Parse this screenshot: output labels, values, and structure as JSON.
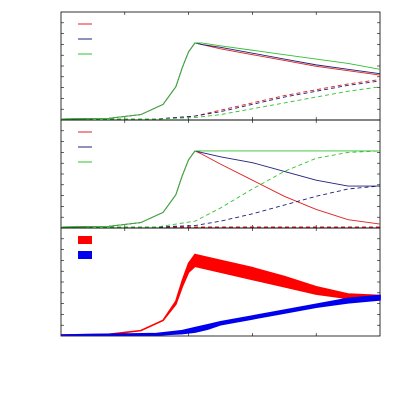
{
  "chart_data": [
    {
      "type": "line",
      "title": "",
      "xlabel": "",
      "ylabel": "",
      "xlim": [
        0,
        1
      ],
      "ylim": [
        0,
        1
      ],
      "grid": false,
      "legend": {
        "position": "top-left",
        "labels": [
          "",
          "",
          ""
        ]
      },
      "series": [
        {
          "color": "#e02020",
          "style": "solid",
          "x": [
            0.0,
            0.15,
            0.25,
            0.32,
            0.36,
            0.38,
            0.4,
            0.42,
            0.44,
            0.5,
            0.6,
            0.7,
            0.8,
            0.9,
            1.0
          ],
          "y": [
            0.0,
            0.005,
            0.03,
            0.1,
            0.22,
            0.35,
            0.46,
            0.52,
            0.51,
            0.48,
            0.44,
            0.4,
            0.36,
            0.33,
            0.3
          ]
        },
        {
          "color": "#20207a",
          "style": "solid",
          "x": [
            0.0,
            0.15,
            0.25,
            0.32,
            0.36,
            0.38,
            0.4,
            0.42,
            0.44,
            0.5,
            0.6,
            0.7,
            0.8,
            0.9,
            1.0
          ],
          "y": [
            0.0,
            0.005,
            0.03,
            0.1,
            0.22,
            0.35,
            0.46,
            0.52,
            0.51,
            0.49,
            0.45,
            0.41,
            0.37,
            0.34,
            0.31
          ]
        },
        {
          "color": "#30c030",
          "style": "solid",
          "x": [
            0.0,
            0.15,
            0.25,
            0.32,
            0.36,
            0.38,
            0.4,
            0.42,
            0.44,
            0.5,
            0.6,
            0.7,
            0.8,
            0.9,
            1.0
          ],
          "y": [
            0.0,
            0.005,
            0.03,
            0.1,
            0.22,
            0.35,
            0.46,
            0.52,
            0.52,
            0.5,
            0.47,
            0.44,
            0.41,
            0.38,
            0.34
          ]
        },
        {
          "color": "#e02020",
          "style": "dashed",
          "x": [
            0.0,
            0.3,
            0.42,
            0.5,
            0.6,
            0.7,
            0.8,
            0.9,
            1.0
          ],
          "y": [
            0.0,
            0.0,
            0.02,
            0.06,
            0.11,
            0.16,
            0.2,
            0.24,
            0.27
          ]
        },
        {
          "color": "#20207a",
          "style": "dashed",
          "x": [
            0.0,
            0.3,
            0.42,
            0.5,
            0.6,
            0.7,
            0.8,
            0.9,
            1.0
          ],
          "y": [
            0.0,
            0.0,
            0.02,
            0.05,
            0.1,
            0.15,
            0.19,
            0.23,
            0.26
          ]
        },
        {
          "color": "#30c030",
          "style": "dashed",
          "x": [
            0.0,
            0.3,
            0.42,
            0.5,
            0.6,
            0.7,
            0.8,
            0.9,
            1.0
          ],
          "y": [
            0.0,
            0.0,
            0.01,
            0.03,
            0.07,
            0.11,
            0.15,
            0.19,
            0.22
          ]
        }
      ]
    },
    {
      "type": "line",
      "title": "",
      "xlabel": "",
      "ylabel": "",
      "xlim": [
        0,
        1
      ],
      "ylim": [
        0,
        1
      ],
      "grid": false,
      "legend": {
        "position": "top-left",
        "labels": [
          "",
          "",
          ""
        ]
      },
      "series": [
        {
          "color": "#e02020",
          "style": "solid",
          "x": [
            0.0,
            0.15,
            0.25,
            0.32,
            0.36,
            0.38,
            0.4,
            0.42,
            0.44,
            0.5,
            0.6,
            0.7,
            0.8,
            0.9,
            1.0
          ],
          "y": [
            0.0,
            0.005,
            0.03,
            0.1,
            0.22,
            0.35,
            0.46,
            0.52,
            0.5,
            0.43,
            0.32,
            0.21,
            0.12,
            0.05,
            0.02
          ]
        },
        {
          "color": "#20207a",
          "style": "solid",
          "x": [
            0.0,
            0.15,
            0.25,
            0.32,
            0.36,
            0.38,
            0.4,
            0.42,
            0.44,
            0.5,
            0.6,
            0.7,
            0.8,
            0.9,
            1.0
          ],
          "y": [
            0.0,
            0.005,
            0.03,
            0.1,
            0.22,
            0.35,
            0.46,
            0.52,
            0.51,
            0.48,
            0.44,
            0.38,
            0.32,
            0.28,
            0.28
          ]
        },
        {
          "color": "#30c030",
          "style": "solid",
          "x": [
            0.0,
            0.15,
            0.25,
            0.32,
            0.36,
            0.38,
            0.4,
            0.42,
            0.44,
            0.5,
            0.6,
            0.7,
            0.8,
            0.9,
            1.0
          ],
          "y": [
            0.0,
            0.005,
            0.03,
            0.1,
            0.22,
            0.35,
            0.46,
            0.52,
            0.52,
            0.52,
            0.52,
            0.52,
            0.52,
            0.52,
            0.52
          ]
        },
        {
          "color": "#e02020",
          "style": "dashed",
          "x": [
            0.0,
            0.3,
            0.5,
            0.7,
            1.0
          ],
          "y": [
            0.0,
            0.0,
            0.0,
            0.0,
            0.0
          ]
        },
        {
          "color": "#20207a",
          "style": "dashed",
          "x": [
            0.0,
            0.3,
            0.42,
            0.5,
            0.6,
            0.7,
            0.8,
            0.9,
            1.0
          ],
          "y": [
            0.0,
            0.0,
            0.01,
            0.04,
            0.09,
            0.15,
            0.21,
            0.26,
            0.28
          ]
        },
        {
          "color": "#30c030",
          "style": "dashed",
          "x": [
            0.0,
            0.3,
            0.42,
            0.5,
            0.6,
            0.7,
            0.8,
            0.9,
            1.0
          ],
          "y": [
            0.0,
            0.0,
            0.04,
            0.13,
            0.26,
            0.38,
            0.47,
            0.51,
            0.52
          ]
        }
      ]
    },
    {
      "type": "area",
      "title": "",
      "xlabel": "",
      "ylabel": "",
      "xlim": [
        0,
        1
      ],
      "ylim": [
        0,
        1
      ],
      "grid": false,
      "legend": {
        "position": "top-left",
        "labels": [
          "",
          ""
        ]
      },
      "series": [
        {
          "color": "#ff0000",
          "x": [
            0.0,
            0.15,
            0.25,
            0.32,
            0.36,
            0.38,
            0.4,
            0.42,
            0.44,
            0.5,
            0.6,
            0.7,
            0.8,
            0.9,
            1.0
          ],
          "y_low": [
            0.0,
            0.005,
            0.03,
            0.1,
            0.21,
            0.33,
            0.43,
            0.47,
            0.46,
            0.43,
            0.38,
            0.33,
            0.28,
            0.25,
            0.25
          ],
          "y_high": [
            0.0,
            0.005,
            0.03,
            0.1,
            0.23,
            0.37,
            0.49,
            0.55,
            0.54,
            0.51,
            0.46,
            0.4,
            0.33,
            0.28,
            0.27
          ]
        },
        {
          "color": "#0000ee",
          "x": [
            0.0,
            0.3,
            0.38,
            0.42,
            0.46,
            0.5,
            0.6,
            0.7,
            0.8,
            0.9,
            1.0
          ],
          "y_low": [
            0.0,
            0.0,
            0.01,
            0.02,
            0.04,
            0.07,
            0.11,
            0.15,
            0.19,
            0.22,
            0.24
          ],
          "y_high": [
            0.0,
            0.01,
            0.03,
            0.05,
            0.07,
            0.09,
            0.13,
            0.17,
            0.21,
            0.25,
            0.27
          ]
        }
      ]
    }
  ]
}
